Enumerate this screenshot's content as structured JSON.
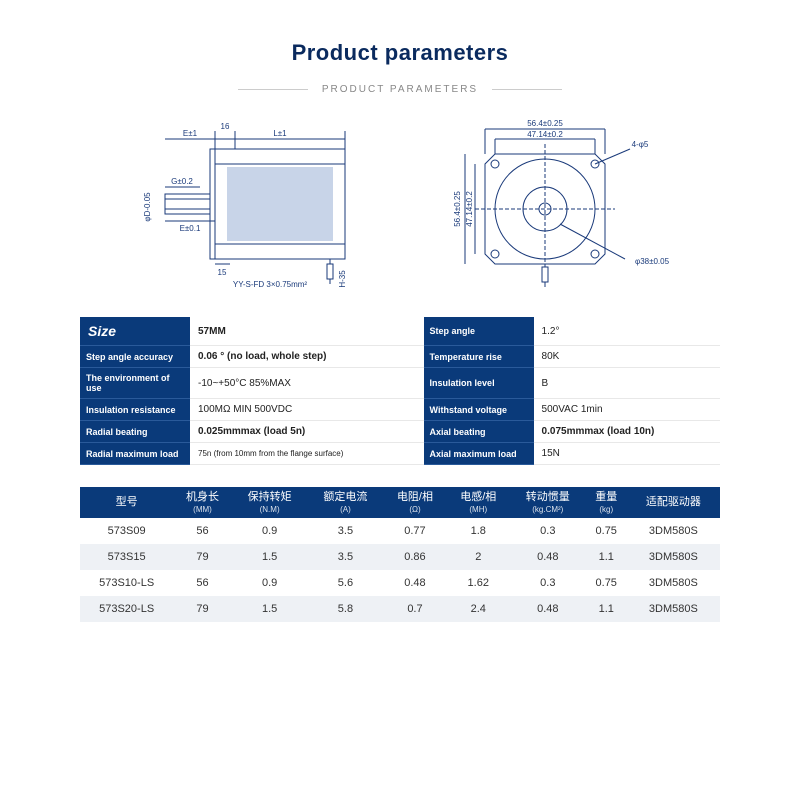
{
  "title": {
    "main": "Product parameters",
    "sub": "PRODUCT PARAMETERS",
    "color": "#0a2a5e"
  },
  "diagram": {
    "stroke": "#1a3a7a",
    "side": {
      "labels": [
        "E±1",
        "L±1",
        "16",
        "G±0.2",
        "φD-0.05",
        "E±0.1",
        "15",
        "YY-S-FD 3×0.75mm²",
        "H-35"
      ]
    },
    "front": {
      "labels": [
        "56.4±0.25",
        "47.14±0.2",
        "4-φ5",
        "56.4±0.25",
        "47.14±0.2",
        "φ38±0.05"
      ]
    }
  },
  "specs": {
    "rows": [
      {
        "l1": "Size",
        "l1_big": true,
        "v1": "57MM",
        "v1_bold": true,
        "l2": "Step angle",
        "v2": "1.2°"
      },
      {
        "l1": "Step angle accuracy",
        "v1": "0.06 ° (no load, whole step)",
        "v1_bold": true,
        "l2": "Temperature rise",
        "v2": "80K"
      },
      {
        "l1": "The environment of use",
        "v1": "-10~+50°C  85%MAX",
        "l2": "Insulation level",
        "v2": "B"
      },
      {
        "l1": "Insulation resistance",
        "v1": "100MΩ MIN  500VDC",
        "l2": "Withstand voltage",
        "v2": "500VAC 1min"
      },
      {
        "l1": "Radial beating",
        "v1": "0.025mmmax (load 5n)",
        "v1_bold": true,
        "l2": "Axial beating",
        "v2": "0.075mmmax (load 10n)",
        "v2_bold": true
      },
      {
        "l1": "Radial maximum load",
        "v1": "75n (from 10mm from the flange surface)",
        "v1_tiny": true,
        "l2": "Axial maximum load",
        "v2": "15N"
      }
    ],
    "label_bg": "#0a3a7a",
    "label_color": "#ffffff"
  },
  "models": {
    "columns": [
      {
        "h": "型号",
        "sub": ""
      },
      {
        "h": "机身长",
        "sub": "(MM)"
      },
      {
        "h": "保持转矩",
        "sub": "(N.M)"
      },
      {
        "h": "额定电流",
        "sub": "(A)"
      },
      {
        "h": "电阻/相",
        "sub": "(Ω)"
      },
      {
        "h": "电感/相",
        "sub": "(MH)"
      },
      {
        "h": "转动惯量",
        "sub": "(kg.CM²)"
      },
      {
        "h": "重量",
        "sub": "(kg)"
      },
      {
        "h": "适配驱动器",
        "sub": ""
      }
    ],
    "rows": [
      [
        "573S09",
        "56",
        "0.9",
        "3.5",
        "0.77",
        "1.8",
        "0.3",
        "0.75",
        "3DM580S"
      ],
      [
        "573S15",
        "79",
        "1.5",
        "3.5",
        "0.86",
        "2",
        "0.48",
        "1.1",
        "3DM580S"
      ],
      [
        "573S10-LS",
        "56",
        "0.9",
        "5.6",
        "0.48",
        "1.62",
        "0.3",
        "0.75",
        "3DM580S"
      ],
      [
        "573S20-LS",
        "79",
        "1.5",
        "5.8",
        "0.7",
        "2.4",
        "0.48",
        "1.1",
        "3DM580S"
      ]
    ],
    "header_bg": "#0a3a7a",
    "row_alt_bg": "#eef1f5"
  }
}
